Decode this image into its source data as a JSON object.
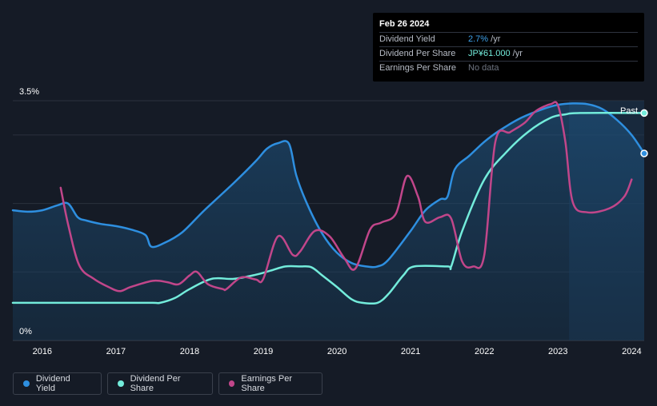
{
  "tooltip": {
    "date": "Feb 26 2024",
    "rows": [
      {
        "label": "Dividend Yield",
        "value": "2.7%",
        "unit": " /yr"
      },
      {
        "label": "Dividend Per Share",
        "value": "JP¥61.000",
        "unit": " /yr"
      },
      {
        "label": "Earnings Per Share",
        "value": "No data",
        "unit": ""
      }
    ]
  },
  "legend": [
    {
      "label": "Dividend Yield",
      "color": "#2e8fe0"
    },
    {
      "label": "Dividend Per Share",
      "color": "#73ecdb"
    },
    {
      "label": "Earnings Per Share",
      "color": "#c1468a"
    }
  ],
  "past_label": "Past",
  "chart_data": {
    "type": "line",
    "title": "",
    "x_ticks": [
      "2016",
      "2017",
      "2018",
      "2019",
      "2020",
      "2021",
      "2022",
      "2023",
      "2024"
    ],
    "xlim": [
      2015.6,
      2024.17
    ],
    "ylim": [
      0,
      3.5
    ],
    "y_tick_labels": [
      "3.5%",
      "0%"
    ],
    "y_gridlines": [
      1.0,
      2.0,
      3.0,
      3.5
    ],
    "forecast_shade_start": 2023.15,
    "series": [
      {
        "name": "Dividend Yield",
        "color": "#2e8fe0",
        "area": true,
        "end_marker": true,
        "points": [
          [
            2015.6,
            1.9
          ],
          [
            2015.8,
            1.88
          ],
          [
            2016.0,
            1.9
          ],
          [
            2016.2,
            1.97
          ],
          [
            2016.35,
            2.0
          ],
          [
            2016.48,
            1.8
          ],
          [
            2016.6,
            1.75
          ],
          [
            2016.8,
            1.7
          ],
          [
            2017.0,
            1.67
          ],
          [
            2017.2,
            1.62
          ],
          [
            2017.4,
            1.54
          ],
          [
            2017.48,
            1.37
          ],
          [
            2017.65,
            1.42
          ],
          [
            2017.9,
            1.58
          ],
          [
            2018.2,
            1.9
          ],
          [
            2018.6,
            2.3
          ],
          [
            2018.9,
            2.62
          ],
          [
            2019.05,
            2.8
          ],
          [
            2019.2,
            2.88
          ],
          [
            2019.35,
            2.87
          ],
          [
            2019.45,
            2.4
          ],
          [
            2019.6,
            1.98
          ],
          [
            2019.8,
            1.56
          ],
          [
            2020.0,
            1.28
          ],
          [
            2020.2,
            1.13
          ],
          [
            2020.4,
            1.08
          ],
          [
            2020.55,
            1.08
          ],
          [
            2020.7,
            1.18
          ],
          [
            2021.0,
            1.6
          ],
          [
            2021.2,
            1.9
          ],
          [
            2021.4,
            2.06
          ],
          [
            2021.5,
            2.1
          ],
          [
            2021.6,
            2.5
          ],
          [
            2021.8,
            2.7
          ],
          [
            2022.0,
            2.9
          ],
          [
            2022.2,
            3.06
          ],
          [
            2022.5,
            3.25
          ],
          [
            2022.8,
            3.38
          ],
          [
            2023.0,
            3.44
          ],
          [
            2023.2,
            3.46
          ],
          [
            2023.4,
            3.45
          ],
          [
            2023.6,
            3.38
          ],
          [
            2023.8,
            3.22
          ],
          [
            2024.0,
            3.0
          ],
          [
            2024.17,
            2.73
          ]
        ]
      },
      {
        "name": "Dividend Per Share",
        "color": "#73ecdb",
        "area": false,
        "end_marker": true,
        "points": [
          [
            2015.6,
            0.55
          ],
          [
            2016.0,
            0.55
          ],
          [
            2016.5,
            0.55
          ],
          [
            2017.0,
            0.55
          ],
          [
            2017.5,
            0.55
          ],
          [
            2017.6,
            0.55
          ],
          [
            2017.8,
            0.62
          ],
          [
            2018.0,
            0.75
          ],
          [
            2018.3,
            0.9
          ],
          [
            2018.6,
            0.9
          ],
          [
            2018.9,
            0.96
          ],
          [
            2019.1,
            1.02
          ],
          [
            2019.3,
            1.08
          ],
          [
            2019.5,
            1.08
          ],
          [
            2019.65,
            1.07
          ],
          [
            2019.8,
            0.95
          ],
          [
            2020.0,
            0.78
          ],
          [
            2020.2,
            0.6
          ],
          [
            2020.35,
            0.55
          ],
          [
            2020.55,
            0.55
          ],
          [
            2020.7,
            0.68
          ],
          [
            2020.9,
            0.95
          ],
          [
            2021.05,
            1.08
          ],
          [
            2021.5,
            1.08
          ],
          [
            2021.55,
            1.08
          ],
          [
            2021.7,
            1.6
          ],
          [
            2022.0,
            2.35
          ],
          [
            2022.3,
            2.75
          ],
          [
            2022.6,
            3.05
          ],
          [
            2022.9,
            3.25
          ],
          [
            2023.1,
            3.3
          ],
          [
            2023.3,
            3.32
          ],
          [
            2024.17,
            3.32
          ]
        ]
      },
      {
        "name": "Earnings Per Share",
        "color": "#c1468a",
        "area": false,
        "end_marker": false,
        "points": [
          [
            2016.25,
            2.23
          ],
          [
            2016.35,
            1.7
          ],
          [
            2016.5,
            1.1
          ],
          [
            2016.7,
            0.9
          ],
          [
            2016.9,
            0.78
          ],
          [
            2017.05,
            0.72
          ],
          [
            2017.2,
            0.78
          ],
          [
            2017.5,
            0.87
          ],
          [
            2017.7,
            0.85
          ],
          [
            2017.85,
            0.82
          ],
          [
            2018.0,
            0.95
          ],
          [
            2018.1,
            1.0
          ],
          [
            2018.25,
            0.82
          ],
          [
            2018.45,
            0.75
          ],
          [
            2018.5,
            0.75
          ],
          [
            2018.7,
            0.92
          ],
          [
            2018.9,
            0.89
          ],
          [
            2019.0,
            0.9
          ],
          [
            2019.2,
            1.52
          ],
          [
            2019.4,
            1.25
          ],
          [
            2019.5,
            1.3
          ],
          [
            2019.7,
            1.6
          ],
          [
            2019.9,
            1.52
          ],
          [
            2020.1,
            1.2
          ],
          [
            2020.25,
            1.05
          ],
          [
            2020.45,
            1.62
          ],
          [
            2020.6,
            1.72
          ],
          [
            2020.8,
            1.85
          ],
          [
            2020.95,
            2.4
          ],
          [
            2021.1,
            2.1
          ],
          [
            2021.2,
            1.73
          ],
          [
            2021.4,
            1.8
          ],
          [
            2021.55,
            1.78
          ],
          [
            2021.7,
            1.15
          ],
          [
            2021.85,
            1.08
          ],
          [
            2022.0,
            1.25
          ],
          [
            2022.15,
            2.9
          ],
          [
            2022.35,
            3.04
          ],
          [
            2022.55,
            3.18
          ],
          [
            2022.7,
            3.35
          ],
          [
            2022.9,
            3.45
          ],
          [
            2023.0,
            3.43
          ],
          [
            2023.1,
            2.9
          ],
          [
            2023.2,
            2.02
          ],
          [
            2023.4,
            1.87
          ],
          [
            2023.7,
            1.93
          ],
          [
            2023.9,
            2.1
          ],
          [
            2024.0,
            2.35
          ]
        ]
      }
    ]
  }
}
